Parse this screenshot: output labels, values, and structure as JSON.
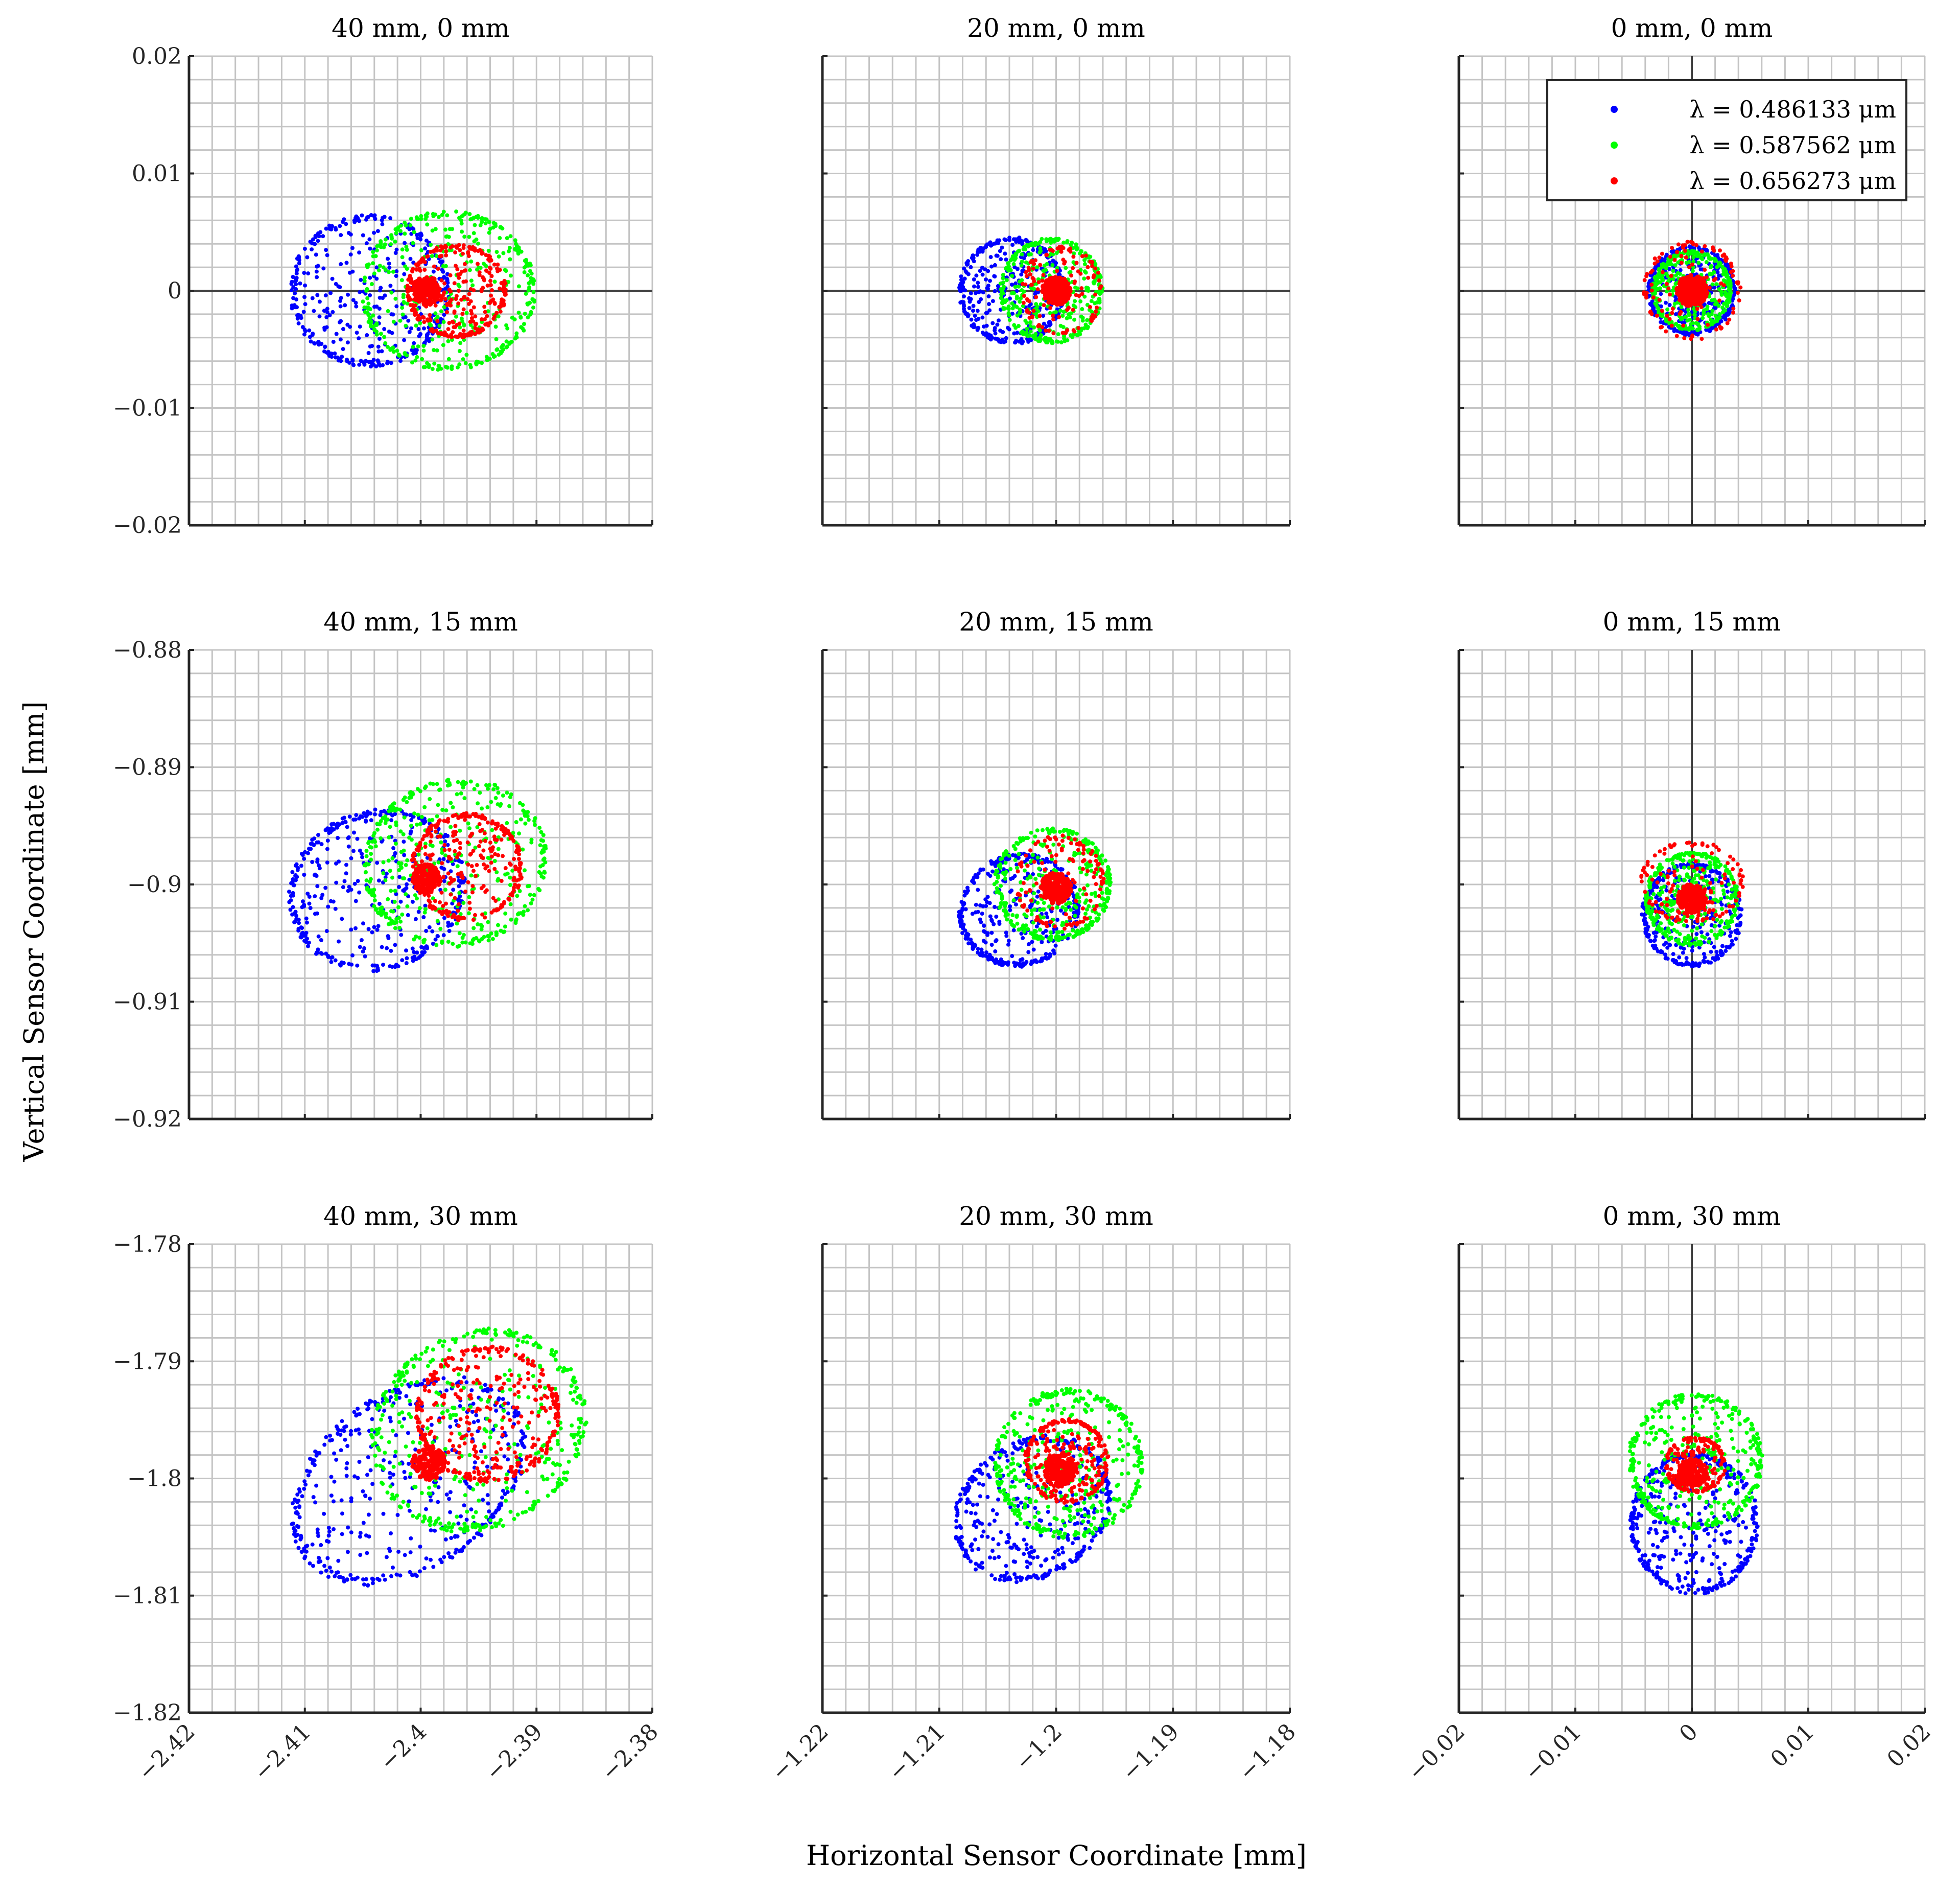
{
  "chart_data": {
    "type": "scatter",
    "xlabel": "Horizontal Sensor Coordinate [mm]",
    "ylabel": "Vertical Sensor Coordinate [mm]",
    "grid": true,
    "legend": {
      "position": "top-right",
      "subplot_index": 2,
      "entries": [
        "λ = 0.486133 μm",
        "λ = 0.587562 μm",
        "λ = 0.656273 μm"
      ]
    },
    "series_colors": [
      "#0000ff",
      "#00ff00",
      "#ff0000"
    ],
    "subplots": [
      {
        "title": "40 mm, 0 mm",
        "xlim": [
          -2.42,
          -2.38
        ],
        "ylim": [
          -0.02,
          0.02
        ],
        "xticks": [
          -2.42,
          -2.41,
          -2.4,
          -2.39,
          -2.38
        ],
        "yticks": [
          -0.02,
          -0.01,
          0,
          0.01,
          0.02
        ],
        "xticklabels": [],
        "yticklabels": [
          "−0.02",
          "−0.01",
          "0",
          "0.01",
          "0.02"
        ],
        "series": [
          {
            "center": [
              -2.4044,
              0
            ],
            "semi_axes": [
              0.0069,
              0.0065
            ],
            "angle_deg": 0,
            "count": 420
          },
          {
            "center": [
              -2.3976,
              0
            ],
            "semi_axes": [
              0.0075,
              0.0068
            ],
            "angle_deg": 0,
            "count": 420
          },
          {
            "center": [
              -2.3969,
              0
            ],
            "semi_axes": [
              0.0043,
              0.004
            ],
            "angle_deg": 0,
            "count": 320,
            "core": {
              "center": [
                -2.3995,
                0
              ],
              "radius": 0.0012,
              "count": 150
            }
          }
        ]
      },
      {
        "title": "20 mm, 0 mm",
        "xlim": [
          -1.22,
          -1.18
        ],
        "ylim": [
          -0.02,
          0.02
        ],
        "xticks": [
          -1.22,
          -1.21,
          -1.2,
          -1.19,
          -1.18
        ],
        "yticks": [
          -0.02,
          -0.01,
          0,
          0.01,
          0.02
        ],
        "xticklabels": [],
        "yticklabels": [],
        "series": [
          {
            "center": [
              -1.2038,
              0
            ],
            "semi_axes": [
              0.0045,
              0.0046
            ],
            "angle_deg": 0,
            "count": 380
          },
          {
            "center": [
              -1.2004,
              0
            ],
            "semi_axes": [
              0.0044,
              0.0045
            ],
            "angle_deg": 0,
            "count": 380
          },
          {
            "center": [
              -1.1995,
              0
            ],
            "semi_axes": [
              0.0035,
              0.0038
            ],
            "angle_deg": 0,
            "count": 120,
            "core": {
              "center": [
                -1.2,
                0
              ],
              "radius": 0.0012,
              "count": 200
            }
          }
        ]
      },
      {
        "title": "0 mm, 0 mm",
        "xlim": [
          -0.02,
          0.02
        ],
        "ylim": [
          -0.02,
          0.02
        ],
        "xticks": [
          -0.02,
          -0.01,
          0,
          0.01,
          0.02
        ],
        "yticks": [
          -0.02,
          -0.01,
          0,
          0.01,
          0.02
        ],
        "xticklabels": [],
        "yticklabels": [],
        "series": [
          {
            "center": [
              0,
              0
            ],
            "semi_axes": [
              0.0038,
              0.0038
            ],
            "angle_deg": 0,
            "count": 380
          },
          {
            "center": [
              0,
              0
            ],
            "semi_axes": [
              0.0034,
              0.0034
            ],
            "angle_deg": 0,
            "count": 380
          },
          {
            "center": [
              0,
              0
            ],
            "semi_axes": [
              0.0042,
              0.0042
            ],
            "angle_deg": 0,
            "count": 120,
            "core": {
              "center": [
                0,
                0
              ],
              "radius": 0.0013,
              "count": 220
            }
          }
        ]
      },
      {
        "title": "40 mm, 15 mm",
        "xlim": [
          -2.42,
          -2.38
        ],
        "ylim": [
          -0.92,
          -0.88
        ],
        "xticks": [
          -2.42,
          -2.41,
          -2.4,
          -2.39,
          -2.38
        ],
        "yticks": [
          -0.92,
          -0.91,
          -0.9,
          -0.89,
          -0.88
        ],
        "xticklabels": [],
        "yticklabels": [
          "−0.92",
          "−0.91",
          "−0.9",
          "−0.89",
          "−0.88"
        ],
        "series": [
          {
            "center": [
              -2.4038,
              -0.9005
            ],
            "semi_axes": [
              0.0078,
              0.0068
            ],
            "angle_deg": 20,
            "count": 420
          },
          {
            "center": [
              -2.397,
              -0.8982
            ],
            "semi_axes": [
              0.008,
              0.0072
            ],
            "angle_deg": 15,
            "count": 420
          },
          {
            "center": [
              -2.396,
              -0.8985
            ],
            "semi_axes": [
              0.0048,
              0.0046
            ],
            "angle_deg": 0,
            "count": 320,
            "core": {
              "center": [
                -2.3995,
                -0.8995
              ],
              "radius": 0.0012,
              "count": 120
            }
          }
        ]
      },
      {
        "title": "20 mm, 15 mm",
        "xlim": [
          -1.22,
          -1.18
        ],
        "ylim": [
          -0.92,
          -0.88
        ],
        "xticks": [
          -1.22,
          -1.21,
          -1.2,
          -1.19,
          -1.18
        ],
        "yticks": [
          -0.92,
          -0.91,
          -0.9,
          -0.89,
          -0.88
        ],
        "xticklabels": [],
        "yticklabels": [],
        "series": [
          {
            "center": [
              -1.2032,
              -0.9022
            ],
            "semi_axes": [
              0.0052,
              0.0048
            ],
            "angle_deg": 20,
            "count": 380
          },
          {
            "center": [
              -1.2003,
              -0.9
            ],
            "semi_axes": [
              0.005,
              0.0048
            ],
            "angle_deg": 0,
            "count": 380
          },
          {
            "center": [
              -1.1997,
              -0.8998
            ],
            "semi_axes": [
              0.0038,
              0.004
            ],
            "angle_deg": 0,
            "count": 130,
            "core": {
              "center": [
                -1.2,
                -0.9003
              ],
              "radius": 0.0013,
              "count": 200
            }
          }
        ]
      },
      {
        "title": "0 mm, 15 mm",
        "xlim": [
          -0.02,
          0.02
        ],
        "ylim": [
          -0.92,
          -0.88
        ],
        "xticks": [
          -0.02,
          -0.01,
          0,
          0.01,
          0.02
        ],
        "yticks": [
          -0.92,
          -0.91,
          -0.9,
          -0.89,
          -0.88
        ],
        "xticklabels": [],
        "yticklabels": [],
        "series": [
          {
            "center": [
              0,
              -0.9026
            ],
            "semi_axes": [
              0.0043,
              0.0044
            ],
            "angle_deg": 0,
            "count": 380
          },
          {
            "center": [
              0,
              -0.9012
            ],
            "semi_axes": [
              0.004,
              0.004
            ],
            "angle_deg": 0,
            "count": 380
          },
          {
            "center": [
              0,
              -0.8998
            ],
            "semi_axes": [
              0.0045,
              0.0035
            ],
            "angle_deg": 0,
            "count": 120,
            "core": {
              "center": [
                0,
                -0.9012
              ],
              "radius": 0.0012,
              "count": 200
            }
          }
        ]
      },
      {
        "title": "40 mm, 30 mm",
        "xlim": [
          -2.42,
          -2.38
        ],
        "ylim": [
          -1.82,
          -1.78
        ],
        "xticks": [
          -2.42,
          -2.41,
          -2.4,
          -2.39,
          -2.38
        ],
        "yticks": [
          -1.82,
          -1.81,
          -1.8,
          -1.79,
          -1.78
        ],
        "xticklabels": [
          "−2.42",
          "−2.41",
          "−2.4",
          "−2.39",
          "−2.38"
        ],
        "yticklabels": [
          "−1.82",
          "−1.81",
          "−1.8",
          "−1.79",
          "−1.78"
        ],
        "series": [
          {
            "center": [
              -2.401,
              -1.8002
            ],
            "semi_axes": [
              0.0112,
              0.0076
            ],
            "angle_deg": 35,
            "count": 460
          },
          {
            "center": [
              -2.395,
              -1.7959
            ],
            "semi_axes": [
              0.0096,
              0.0084
            ],
            "angle_deg": 30,
            "count": 440
          },
          {
            "center": [
              -2.3942,
              -1.7945
            ],
            "semi_axes": [
              0.0062,
              0.0058
            ],
            "angle_deg": 0,
            "count": 360,
            "core": {
              "center": [
                -2.3993,
                -1.7987
              ],
              "radius": 0.0014,
              "count": 120
            }
          }
        ]
      },
      {
        "title": "20 mm, 30 mm",
        "xlim": [
          -1.22,
          -1.18
        ],
        "ylim": [
          -1.82,
          -1.78
        ],
        "xticks": [
          -1.22,
          -1.21,
          -1.2,
          -1.19,
          -1.18
        ],
        "yticks": [
          -1.82,
          -1.81,
          -1.8,
          -1.79,
          -1.78
        ],
        "xticklabels": [
          "−1.22",
          "−1.21",
          "−1.2",
          "−1.19",
          "−1.18"
        ],
        "yticklabels": [],
        "series": [
          {
            "center": [
              -1.202,
              -1.8026
            ],
            "semi_axes": [
              0.0072,
              0.0058
            ],
            "angle_deg": 35,
            "count": 420
          },
          {
            "center": [
              -1.1989,
              -1.7987
            ],
            "semi_axes": [
              0.0064,
              0.0064
            ],
            "angle_deg": 0,
            "count": 420
          },
          {
            "center": [
              -1.1991,
              -1.7985
            ],
            "semi_axes": [
              0.0036,
              0.0036
            ],
            "angle_deg": 0,
            "count": 260,
            "core": {
              "center": [
                -1.1997,
                -1.7993
              ],
              "radius": 0.0014,
              "count": 150
            }
          }
        ]
      },
      {
        "title": "0 mm, 30 mm",
        "xlim": [
          -0.02,
          0.02
        ],
        "ylim": [
          -1.82,
          -1.78
        ],
        "xticks": [
          -0.02,
          -0.01,
          0,
          0.01,
          0.02
        ],
        "yticks": [
          -1.82,
          -1.81,
          -1.8,
          -1.79,
          -1.78
        ],
        "xticklabels": [
          "−0.02",
          "−0.01",
          "0",
          "0.01",
          "0.02"
        ],
        "yticklabels": [],
        "series": [
          {
            "center": [
              0.0002,
              -1.8038
            ],
            "semi_axes": [
              0.0055,
              0.0061
            ],
            "angle_deg": 0,
            "count": 420
          },
          {
            "center": [
              0.0003,
              -1.7985
            ],
            "semi_axes": [
              0.0058,
              0.0058
            ],
            "angle_deg": 0,
            "count": 420
          },
          {
            "center": [
              0.0003,
              -1.7988
            ],
            "semi_axes": [
              0.0026,
              0.0024
            ],
            "angle_deg": 0,
            "count": 200,
            "core": {
              "center": [
                0.0001,
                -1.7995
              ],
              "radius": 0.0012,
              "count": 150
            }
          }
        ]
      }
    ]
  }
}
